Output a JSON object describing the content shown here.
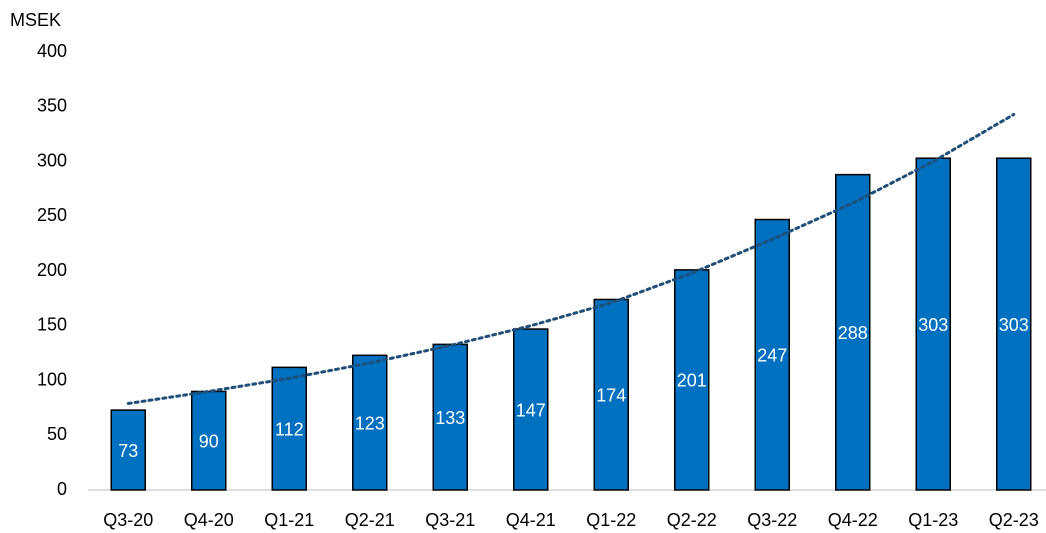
{
  "chart_data": {
    "type": "bar",
    "y_label": "MSEK",
    "categories": [
      "Q3-20",
      "Q4-20",
      "Q1-21",
      "Q2-21",
      "Q3-21",
      "Q4-21",
      "Q1-22",
      "Q2-22",
      "Q3-22",
      "Q4-22",
      "Q1-23",
      "Q2-23"
    ],
    "values": [
      73,
      90,
      112,
      123,
      133,
      147,
      174,
      201,
      247,
      288,
      303,
      303
    ],
    "color": "#0070c0",
    "trendline": {
      "color": "#1f4e79",
      "values": [
        79,
        90,
        102,
        116,
        132,
        150,
        171,
        198,
        229,
        262,
        300,
        343
      ]
    },
    "ylim": [
      0,
      400
    ],
    "yticks": [
      0,
      50,
      100,
      150,
      200,
      250,
      300,
      350,
      400
    ],
    "grid": false
  }
}
